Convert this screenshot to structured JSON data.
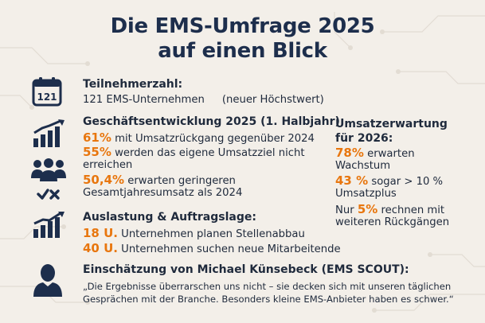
{
  "title": {
    "line1": "Die EMS-Umfrage 2025",
    "line2": "auf einen Blick"
  },
  "colors": {
    "accent": "#e8760e",
    "navy": "#1d2e4c",
    "background": "#f3efe9"
  },
  "icons": {
    "participants": "calendar-icon",
    "development": "growth-bar-chart-icon",
    "group": "people-group-icon",
    "decision": "check-cross-icon",
    "capacity": "bar-chart-trend-icon",
    "quote": "person-silhouette-icon"
  },
  "participants": {
    "calendar_number": "121",
    "heading": "Teilnehmerzahl:",
    "value": "121 EMS-Unternehmen",
    "note": "(neuer Höchstwert)"
  },
  "development": {
    "heading": "Geschäftsentwicklung 2025 (1. Halbjahr):",
    "item1": {
      "value": "61%",
      "text": " mit Umsatzrückgang gegenüber 2024"
    },
    "item2": {
      "value": "55%",
      "text": " werden das eigene Umsatzziel nicht",
      "text2": "erreichen"
    },
    "item3": {
      "value": "50,4%",
      "text": " erwarten geringeren",
      "text2": "Gesamtjahresumsatz als 2024"
    }
  },
  "forecast": {
    "heading1": "Umsatzerwartung",
    "heading2": "für 2026:",
    "item1": {
      "value": "78%",
      "text": " erwarten",
      "text2": "Wachstum"
    },
    "item2": {
      "value": "43 %",
      "text": " sogar > 10 %",
      "text2": "Umsatzplus"
    },
    "item3": {
      "prefix": "Nur ",
      "value": "5%",
      "text": " rechnen mit",
      "text2": "weiteren Rückgängen"
    }
  },
  "capacity": {
    "heading": "Auslastung & Auftragslage:",
    "item1": {
      "value": "18 U.",
      "text": " Unternehmen planen Stellenabbau"
    },
    "item2": {
      "value": "40 U.",
      "text": " Unternehmen suchen neue Mitarbeitende"
    }
  },
  "assessment": {
    "heading": "Einschätzung von Michael Künsebeck (EMS SCOUT):",
    "quote_line1": "„Die Ergebnisse überrarschen uns nicht – sie decken sich mit unseren täglichen",
    "quote_line2": "Gesprächen mit der Branche. Besonders kleine EMS-Anbieter haben es schwer.“"
  }
}
